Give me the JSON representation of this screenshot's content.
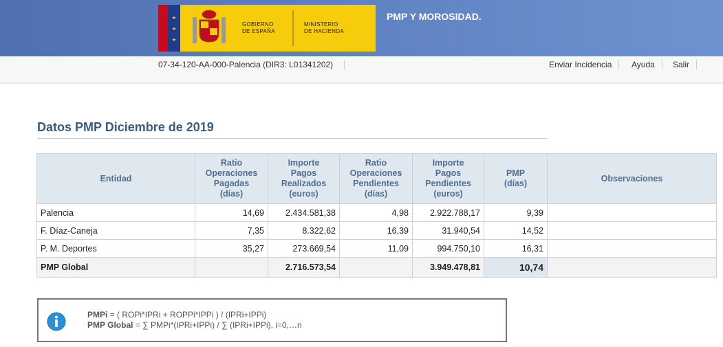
{
  "header": {
    "logo_lines": [
      "GOBIERNO",
      "DE ESPAÑA"
    ],
    "ministry_lines": [
      "MINISTERIO",
      "DE HACIENDA"
    ],
    "app_title": "PMP Y MOROSIDAD."
  },
  "toolbar": {
    "entity": "07-34-120-AA-000-Palencia (DIR3: L01341202)",
    "links": [
      "Enviar Incidencia",
      "Ayuda",
      "Salir"
    ]
  },
  "section_title": "Datos PMP Diciembre de 2019",
  "table": {
    "columns": [
      [
        "Entidad"
      ],
      [
        "Ratio",
        "Operaciones",
        "Pagadas",
        "(días)"
      ],
      [
        "Importe",
        "Pagos",
        "Realizados",
        "(euros)"
      ],
      [
        "Ratio",
        "Operaciones",
        "Pendientes",
        "(días)"
      ],
      [
        "Importe",
        "Pagos",
        "Pendientes",
        "(euros)"
      ],
      [
        "PMP",
        "(días)"
      ],
      [
        "Observaciones"
      ]
    ],
    "rows": [
      [
        "Palencia",
        "14,69",
        "2.434.581,38",
        "4,98",
        "2.922.788,17",
        "9,39"
      ],
      [
        "F. Díaz-Caneja",
        "7,35",
        "8.322,62",
        "16,39",
        "31.940,54",
        "14,52"
      ],
      [
        "P. M. Deportes",
        "35,27",
        "273.669,54",
        "11,09",
        "994.750,10",
        "16,31"
      ]
    ],
    "total": {
      "label": "PMP Global",
      "importe_pagos_realizados": "2.716.573,54",
      "importe_pagos_pendientes": "3.949.478,81",
      "pmp": "10,74"
    }
  },
  "note": {
    "lines": [
      {
        "label": "PMPi",
        "text": "= ( ROPi*IPRi + ROPPi*IPPi ) / (IPRi+IPPi)"
      },
      {
        "label": "PMP Global",
        "text": "= ∑ PMPi*(IPRi+IPPi) / ∑ (IPRi+IPPi), i=0,…n"
      }
    ]
  }
}
